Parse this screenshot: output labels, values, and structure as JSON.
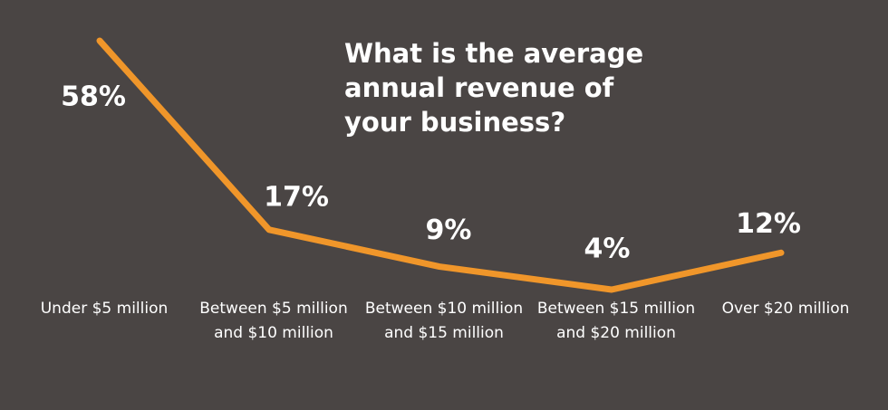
{
  "chart_data": {
    "type": "line",
    "title": "What is the average annual revenue of your business?",
    "categories": [
      "Under $5 million",
      "Between $5 million and $10 million",
      "Between $10 million and $15 million",
      "Between $15 million and $20 million",
      "Over $20 million"
    ],
    "values": [
      58,
      17,
      9,
      4,
      12
    ],
    "value_labels": [
      "58%",
      "17%",
      "9%",
      "4%",
      "12%"
    ],
    "color": "#f0962a"
  }
}
